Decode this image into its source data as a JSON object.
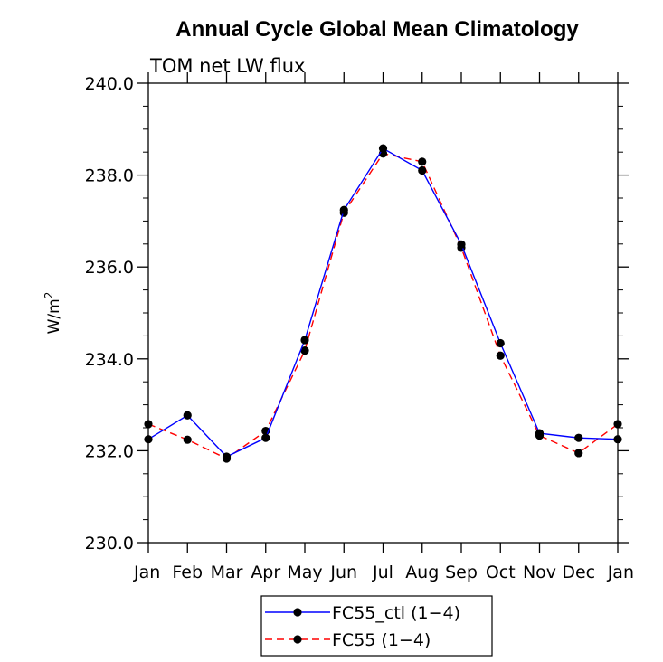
{
  "chart_data": {
    "type": "line",
    "title": "Annual Cycle Global Mean Climatology",
    "subtitle": "TOM net LW flux",
    "ylabel_base": "W/m",
    "ylabel_exponent": "2",
    "xlabel": "",
    "categories": [
      "Jan",
      "Feb",
      "Mar",
      "Apr",
      "May",
      "Jun",
      "Jul",
      "Aug",
      "Sep",
      "Oct",
      "Nov",
      "Dec",
      "Jan"
    ],
    "ylim": [
      230.0,
      240.0
    ],
    "yticks": [
      "230.0",
      "232.0",
      "234.0",
      "236.0",
      "238.0",
      "240.0"
    ],
    "ytick_values": [
      230,
      232,
      234,
      236,
      238,
      240
    ],
    "grid": false,
    "legend_position": "bottom-center",
    "series": [
      {
        "name": "FC55_ctl (1−4)",
        "color": "#0000ff",
        "dash": "solid",
        "marker": "dot",
        "values": [
          232.25,
          232.77,
          231.87,
          232.28,
          234.41,
          237.24,
          238.58,
          238.1,
          236.49,
          234.34,
          232.38,
          232.28,
          232.25
        ]
      },
      {
        "name": "FC55 (1−4)",
        "color": "#ff0000",
        "dash": "dashed",
        "marker": "dot",
        "values": [
          232.58,
          232.24,
          231.83,
          232.43,
          234.18,
          237.18,
          238.47,
          238.29,
          236.42,
          234.07,
          232.33,
          231.95,
          232.58
        ]
      }
    ]
  }
}
